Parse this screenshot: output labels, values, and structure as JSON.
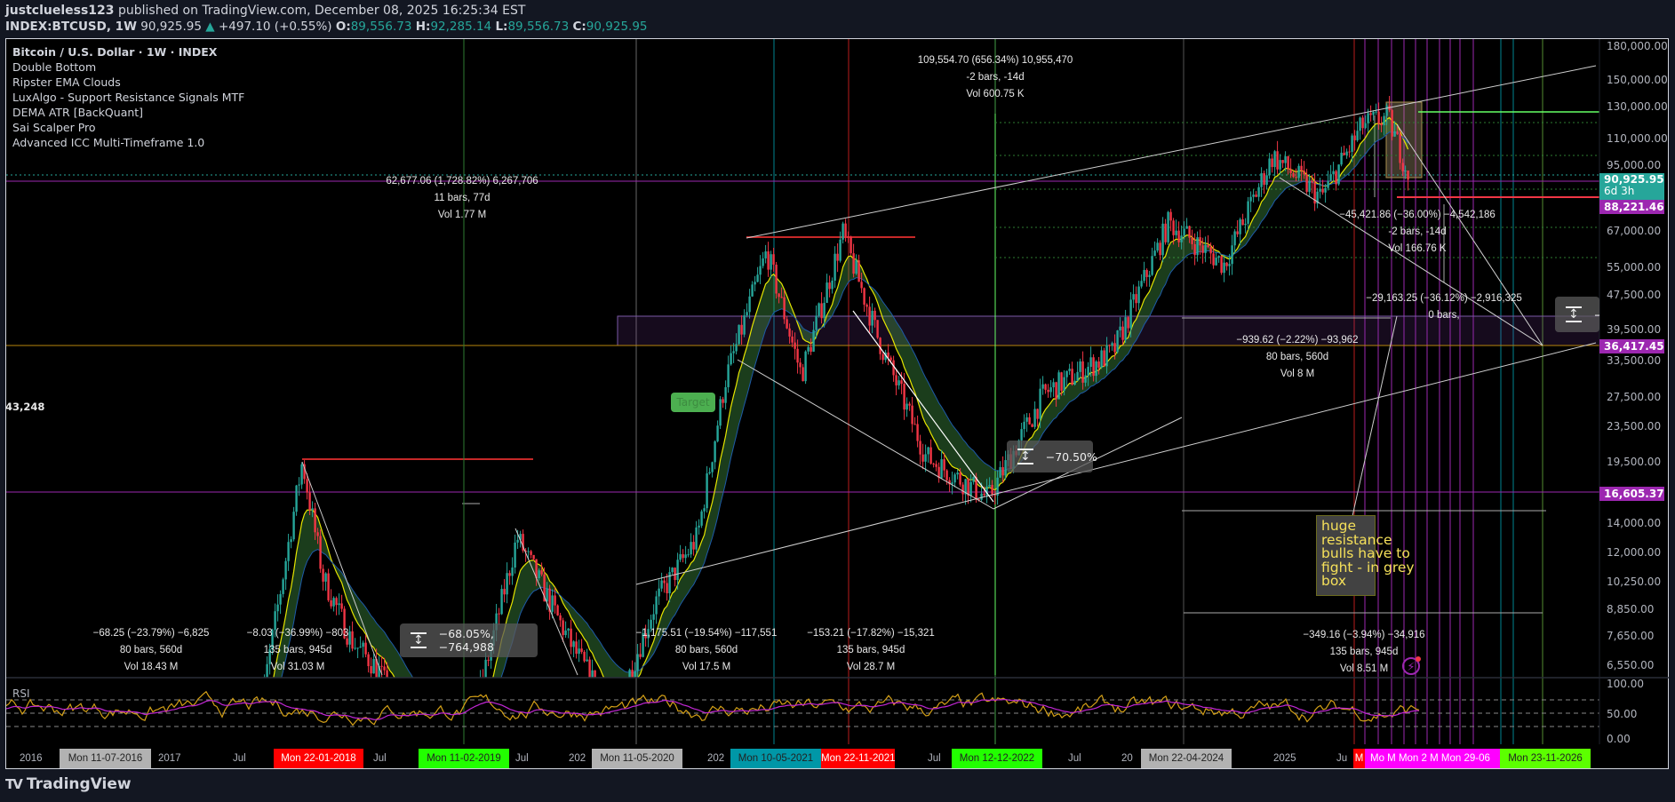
{
  "header": {
    "author": "justclueless123",
    "published": "published on TradingView.com, December 08, 2025 16:25:34 EST",
    "symbol": "INDEX:BTCUSD, 1W",
    "last": "90,925.95",
    "change": "+497.10 (+0.55%)",
    "open_label": "O:",
    "open": "89,556.73",
    "high_label": "H:",
    "high": "92,285.14",
    "low_label": "L:",
    "low": "89,556.73",
    "close_label": "C:",
    "close": "90,925.95"
  },
  "legend": {
    "title": "Bitcoin / U.S. Dollar · 1W · INDEX",
    "indicators": [
      "Double Bottom",
      "Ripster EMA Clouds",
      "LuxAlgo - Support Resistance Signals MTF",
      "DEMA ATR [BackQuant]",
      "Sai Scalper Pro",
      "Advanced ICC Multi-Timeframe 1.0"
    ]
  },
  "price_axis": {
    "scale": "log",
    "labels": [
      "180,000.00",
      "150,000.00",
      "130,000.00",
      "110,000.00",
      "95,000.00",
      "67,000.00",
      "55,000.00",
      "47,500.00",
      "39,500.00",
      "33,500.00",
      "27,500.00",
      "23,500.00",
      "19,500.00",
      "14,000.00",
      "12,000.00",
      "10,250.00",
      "8,850.00",
      "7,650.00",
      "6,550.00"
    ],
    "badges": [
      {
        "value": "90,925.95",
        "sub": "6d 3h",
        "color": "#26a69a"
      },
      {
        "value": "88,221.46",
        "color": "#9c27b0"
      },
      {
        "value": "36,417.45",
        "color": "#9c27b0"
      },
      {
        "value": "16,605.37",
        "color": "#9c27b0"
      }
    ],
    "rsi_labels": [
      "100.00",
      "50.00",
      "0.00"
    ]
  },
  "time_axis": {
    "plain": [
      "2016",
      "2017",
      "Jul",
      "Jul",
      "Jul",
      "202",
      "202",
      "Jul",
      "Jul",
      "20",
      "2025",
      "Ju"
    ],
    "markers": [
      {
        "text": "Mon 11-07-2016",
        "color": "#b2b2b2"
      },
      {
        "text": "Mon 22-01-2018",
        "color": "#ff0000"
      },
      {
        "text": "Mon 11-02-2019",
        "color": "#22ff00"
      },
      {
        "text": "Mon 11-05-2020",
        "color": "#b2b2b2"
      },
      {
        "text": "Mon 10-05-2021",
        "color": "#0097a7"
      },
      {
        "text": "Mon 22-11-2021",
        "color": "#ff0000"
      },
      {
        "text": "Mon 12-12-2022",
        "color": "#22ff00"
      },
      {
        "text": "Mon 22-04-2024",
        "color": "#b2b2b2"
      },
      {
        "text": "M",
        "color": "#ff0000"
      },
      {
        "text": "Mo  M  Mon 2  M  Mon 29-06",
        "color": "#ff00ff"
      },
      {
        "text": "Mon 23-11-2026",
        "color": "#5cff00"
      }
    ]
  },
  "annotations": {
    "top": [
      "109,554.70 (656.34%) 10,955,470",
      "-2 bars, -14d",
      "Vol 600.75 K"
    ],
    "left_top": [
      "62,677.06 (1,728.82%) 6,267,706",
      "11 bars, 77d",
      "Vol 1.77 M"
    ],
    "right_a": [
      "−45,421.86 (−36.00%) −4,542,186",
      "-2 bars, -14d",
      "Vol 166.76 K"
    ],
    "right_b": [
      "−29,163.25 (−36.12%) −2,916,325",
      "0 bars,"
    ],
    "mid": [
      "−939.62 (−2.22%) −93,962",
      "80 bars, 560d",
      "Vol 8 M"
    ],
    "bl1": [
      "−68.25 (−23.79%) −6,825",
      "80 bars, 560d",
      "Vol 18.43 M"
    ],
    "bl2": [
      "−8.03 (−36.99%) −803",
      "135 bars, 945d",
      "Vol 31.03 M"
    ],
    "bm1": [
      "−1,175.51 (−19.54%) −117,551",
      "80 bars, 560d",
      "Vol 17.5 M"
    ],
    "bm2": [
      "−153.21 (−17.82%) −15,321",
      "135 bars, 945d",
      "Vol 28.7 M"
    ],
    "br": [
      "−349.16 (−3.94%) −34,916",
      "135 bars, 945d",
      "Vol 8.51 M"
    ],
    "left_value": "43,248",
    "range_box_1": "−68.05%, −764,988",
    "range_box_2": "−70.50%",
    "range_box_3": "−",
    "target": "Target"
  },
  "note": "huge\nresistance\nbulls have to\nfight - in grey\nbox",
  "rsi": {
    "label": "RSI"
  },
  "footer": {
    "logo": "TV",
    "brand": "TradingView"
  },
  "colors": {
    "up": "#26a69a",
    "down": "#f23645",
    "cloud": "#4caf50",
    "level": "#9c27b0"
  }
}
